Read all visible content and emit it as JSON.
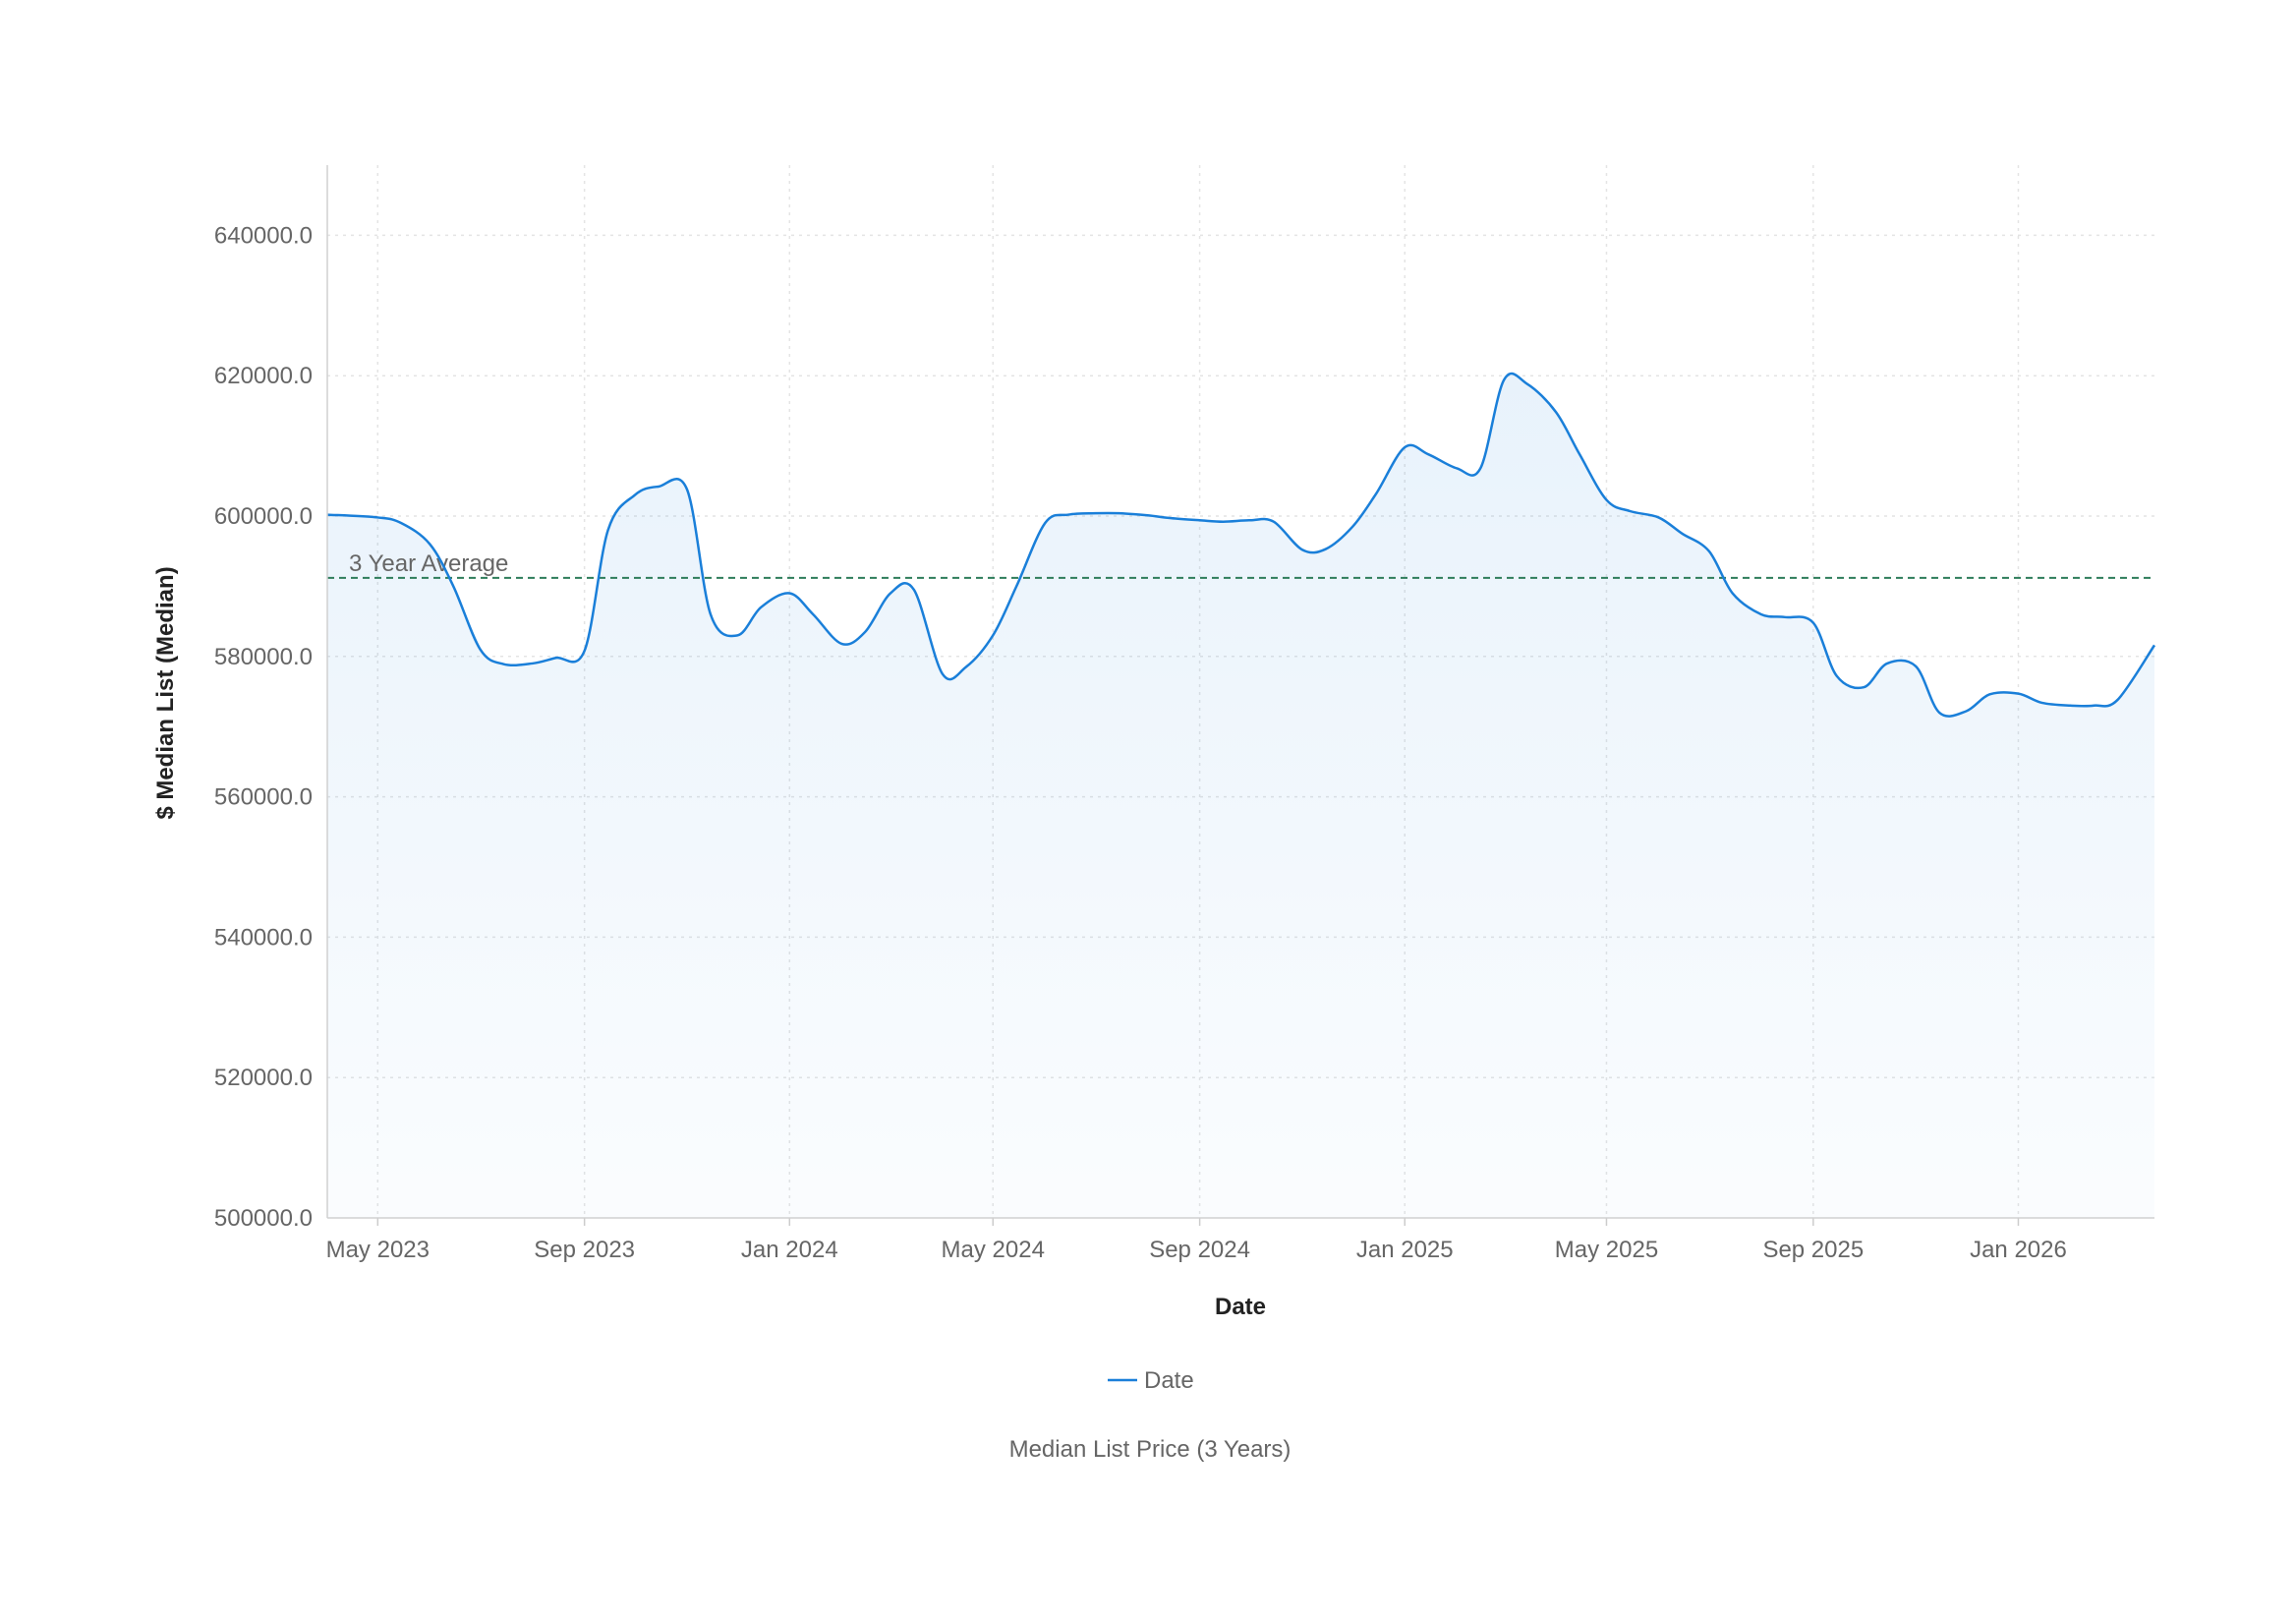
{
  "chart_data": {
    "type": "area",
    "title": "Median List Price (3 Years)",
    "xlabel": "Date",
    "ylabel": "$ Median List (Median)",
    "legend": {
      "placement": "bottom",
      "entries": [
        "Date"
      ]
    },
    "grid": true,
    "ylim": [
      500000,
      650000
    ],
    "xlim": [
      "2023-04-01",
      "2026-03-23"
    ],
    "x_ticks": [
      {
        "date": "2023-05-01",
        "label": "May 2023"
      },
      {
        "date": "2023-09-01",
        "label": "Sep 2023"
      },
      {
        "date": "2024-01-01",
        "label": "Jan 2024"
      },
      {
        "date": "2024-05-01",
        "label": "May 2024"
      },
      {
        "date": "2024-09-01",
        "label": "Sep 2024"
      },
      {
        "date": "2025-01-01",
        "label": "Jan 2025"
      },
      {
        "date": "2025-05-01",
        "label": "May 2025"
      },
      {
        "date": "2025-09-01",
        "label": "Sep 2025"
      },
      {
        "date": "2026-01-01",
        "label": "Jan 2026"
      }
    ],
    "y_ticks": [
      500000,
      520000,
      540000,
      560000,
      580000,
      600000,
      620000,
      640000
    ],
    "y_tick_labels": [
      "500000.0",
      "520000.0",
      "540000.0",
      "560000.0",
      "580000.0",
      "600000.0",
      "620000.0",
      "640000.0"
    ],
    "reference_line": {
      "label": "3 Year Average",
      "value": 591200,
      "color": "#2e7d5b",
      "style": "dashed"
    },
    "series": [
      {
        "name": "Date",
        "color": "#1a7fd9",
        "x": [
          "2023-04-01",
          "2023-05-01",
          "2023-05-15",
          "2023-06-01",
          "2023-06-15",
          "2023-07-01",
          "2023-07-15",
          "2023-08-01",
          "2023-08-15",
          "2023-09-01",
          "2023-09-15",
          "2023-10-01",
          "2023-10-15",
          "2023-11-01",
          "2023-11-15",
          "2023-12-01",
          "2023-12-15",
          "2024-01-01",
          "2024-01-15",
          "2024-02-01",
          "2024-02-15",
          "2024-03-01",
          "2024-03-15",
          "2024-04-01",
          "2024-04-15",
          "2024-05-01",
          "2024-05-15",
          "2024-06-01",
          "2024-06-15",
          "2024-07-01",
          "2024-07-15",
          "2024-08-01",
          "2024-08-15",
          "2024-09-01",
          "2024-09-15",
          "2024-10-01",
          "2024-10-15",
          "2024-11-01",
          "2024-11-15",
          "2024-12-01",
          "2024-12-15",
          "2025-01-01",
          "2025-01-15",
          "2025-02-01",
          "2025-02-15",
          "2025-03-01",
          "2025-03-15",
          "2025-04-01",
          "2025-04-15",
          "2025-05-01",
          "2025-05-15",
          "2025-06-01",
          "2025-06-15",
          "2025-07-01",
          "2025-07-15",
          "2025-08-01",
          "2025-08-15",
          "2025-09-01",
          "2025-09-15",
          "2025-10-01",
          "2025-10-15",
          "2025-11-01",
          "2025-11-15",
          "2025-12-01",
          "2025-12-15",
          "2026-01-01",
          "2026-01-15",
          "2026-02-01",
          "2026-02-15",
          "2026-03-01",
          "2026-03-23"
        ],
        "values": [
          600200,
          599800,
          599000,
          596000,
          590000,
          581000,
          578900,
          579000,
          579800,
          580800,
          598000,
          603000,
          604200,
          603800,
          586000,
          583000,
          587000,
          589000,
          586000,
          581800,
          583500,
          589000,
          589500,
          577500,
          578500,
          583000,
          590000,
          599000,
          600200,
          600400,
          600400,
          600100,
          599700,
          599400,
          599200,
          599400,
          599200,
          595200,
          595300,
          598500,
          603200,
          609800,
          608800,
          606800,
          606800,
          619400,
          618800,
          614800,
          608800,
          602300,
          600700,
          599800,
          597500,
          595000,
          589000,
          586000,
          585600,
          584800,
          577200,
          575600,
          579000,
          578600,
          572000,
          572200,
          574600,
          574700,
          573400,
          573000,
          573000,
          573800,
          581600
        ]
      }
    ]
  }
}
